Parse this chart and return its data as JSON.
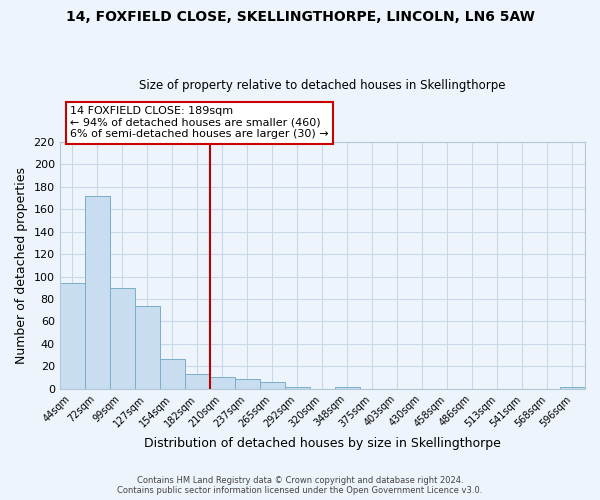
{
  "title": "14, FOXFIELD CLOSE, SKELLINGTHORPE, LINCOLN, LN6 5AW",
  "subtitle": "Size of property relative to detached houses in Skellingthorpe",
  "xlabel": "Distribution of detached houses by size in Skellingthorpe",
  "ylabel": "Number of detached properties",
  "bar_color": "#c8ddef",
  "bar_edge_color": "#7aaec8",
  "bins": [
    "44sqm",
    "72sqm",
    "99sqm",
    "127sqm",
    "154sqm",
    "182sqm",
    "210sqm",
    "237sqm",
    "265sqm",
    "292sqm",
    "320sqm",
    "348sqm",
    "375sqm",
    "403sqm",
    "430sqm",
    "458sqm",
    "486sqm",
    "513sqm",
    "541sqm",
    "568sqm",
    "596sqm"
  ],
  "values": [
    94,
    172,
    90,
    74,
    27,
    13,
    11,
    9,
    6,
    2,
    0,
    2,
    0,
    0,
    0,
    0,
    0,
    0,
    0,
    0,
    2
  ],
  "vline_index": 5.5,
  "vline_color": "#bb0000",
  "ylim": [
    0,
    220
  ],
  "yticks": [
    0,
    20,
    40,
    60,
    80,
    100,
    120,
    140,
    160,
    180,
    200,
    220
  ],
  "annotation_title": "14 FOXFIELD CLOSE: 189sqm",
  "annotation_line1": "← 94% of detached houses are smaller (460)",
  "annotation_line2": "6% of semi-detached houses are larger (30) →",
  "annotation_box_color": "#ffffff",
  "annotation_box_edge": "#cc0000",
  "footer_line1": "Contains HM Land Registry data © Crown copyright and database right 2024.",
  "footer_line2": "Contains public sector information licensed under the Open Government Licence v3.0.",
  "grid_color": "#c8d8e8",
  "background_color": "#eef4fb"
}
